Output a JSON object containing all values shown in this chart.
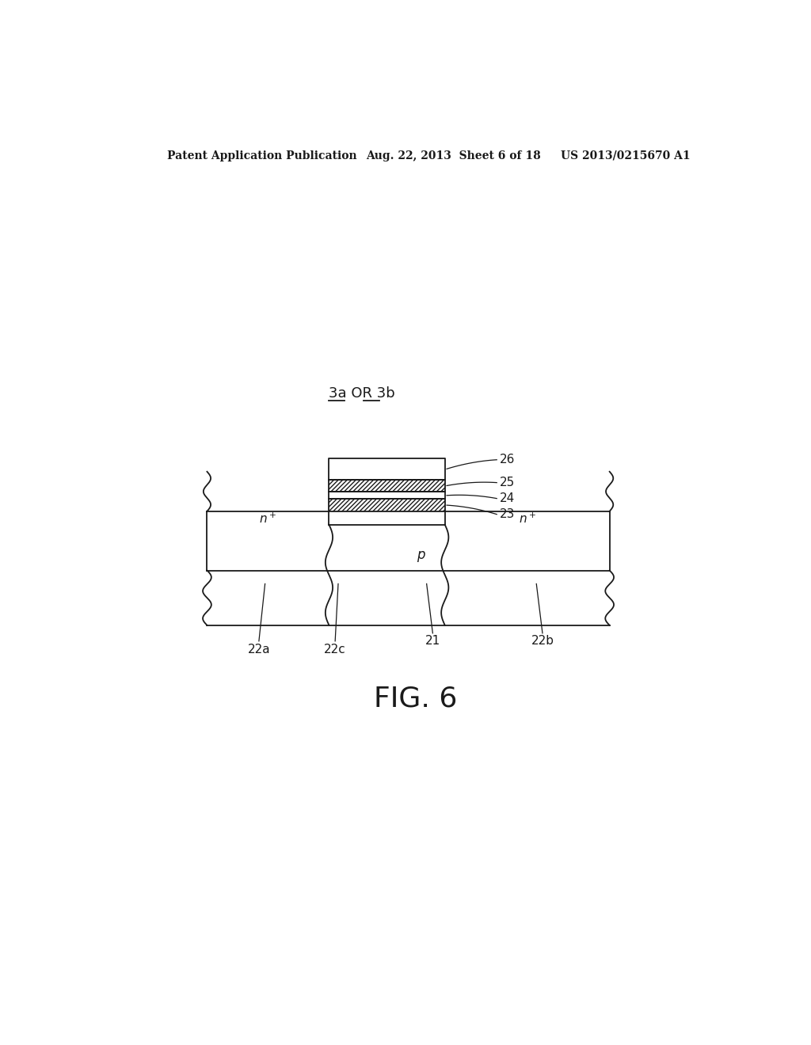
{
  "bg_color": "#ffffff",
  "header_left": "Patent Application Publication",
  "header_mid": "Aug. 22, 2013  Sheet 6 of 18",
  "header_right": "US 2013/0215670 A1",
  "fig_label": "FIG. 6",
  "line_color": "#1a1a1a",
  "lw": 1.3
}
